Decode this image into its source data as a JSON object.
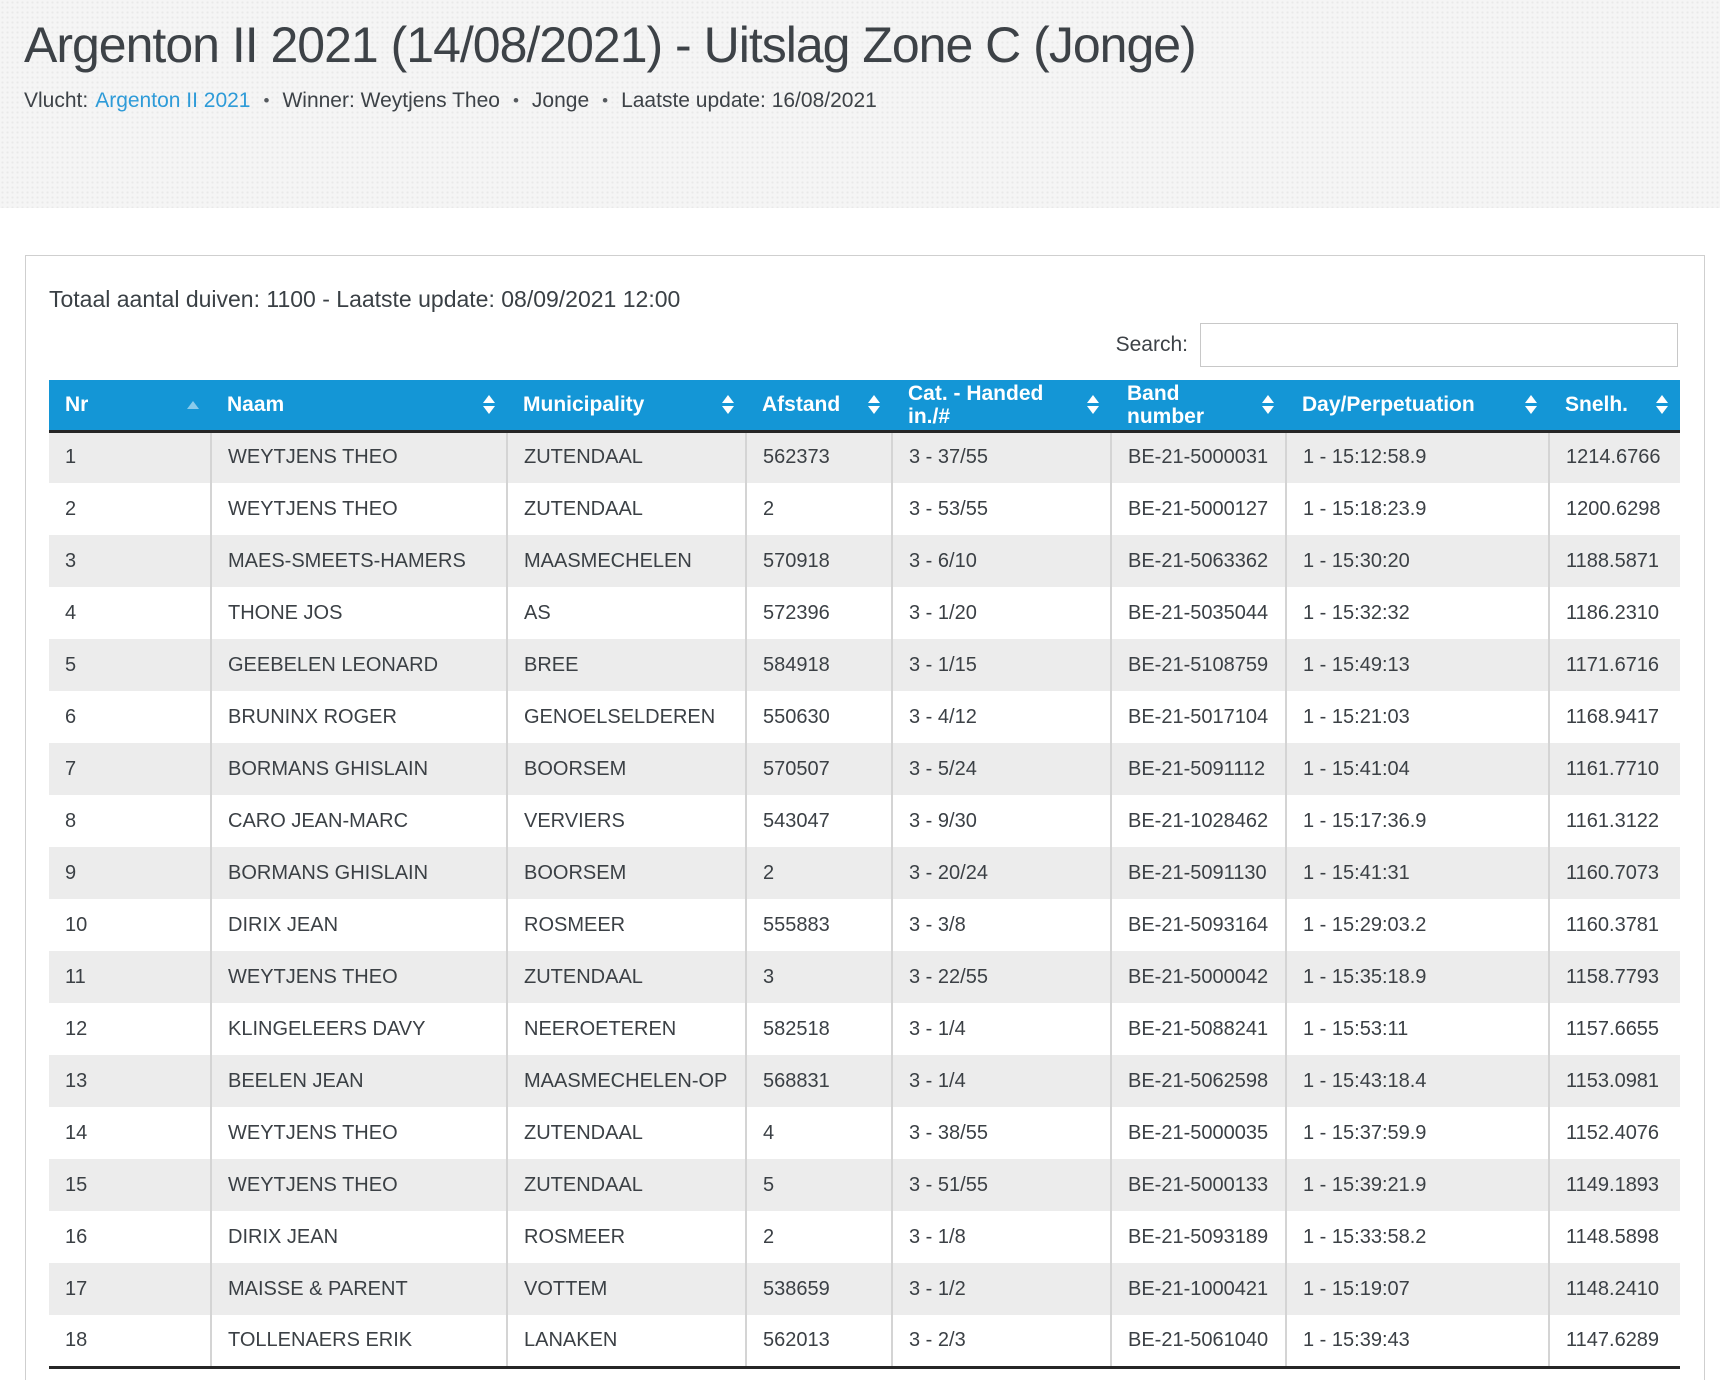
{
  "colors": {
    "header-bg": "#1496d6",
    "link": "#2e9bd8",
    "stripe": "#ececec",
    "text": "#3b4045",
    "border-dark": "#262626",
    "band-bg": "#f5f5f5"
  },
  "page": {
    "title": "Argenton II 2021 (14/08/2021) - Uitslag Zone C (Jonge)",
    "meta": {
      "vlucht_label": "Vlucht:",
      "vlucht_link": "Argenton II 2021",
      "separator": "•",
      "winner": "Winner: Weytjens Theo",
      "category": "Jonge",
      "last_update": "Laatste update: 16/08/2021"
    }
  },
  "panel": {
    "summary": "Totaal aantal duiven: 1100 - Laatste update: 08/09/2021 12:00",
    "search_label": "Search:",
    "search_value": ""
  },
  "table": {
    "columns": [
      {
        "label": "Nr",
        "sort": "asc"
      },
      {
        "label": "Naam",
        "sort": "both"
      },
      {
        "label": "Municipality",
        "sort": "both"
      },
      {
        "label": "Afstand",
        "sort": "both"
      },
      {
        "label": "Cat. - Handed\nin./#",
        "sort": "both"
      },
      {
        "label": "Band\nnumber",
        "sort": "both"
      },
      {
        "label": "Day/Perpetuation",
        "sort": "both"
      },
      {
        "label": "Snelh.",
        "sort": "both"
      }
    ],
    "rows": [
      [
        "1",
        "WEYTJENS THEO",
        "ZUTENDAAL",
        "562373",
        "3 - 37/55",
        "BE-21-5000031",
        "1 - 15:12:58.9",
        "1214.6766"
      ],
      [
        "2",
        "WEYTJENS THEO",
        "ZUTENDAAL",
        "2",
        "3 - 53/55",
        "BE-21-5000127",
        "1 - 15:18:23.9",
        "1200.6298"
      ],
      [
        "3",
        "MAES-SMEETS-HAMERS",
        "MAASMECHELEN",
        "570918",
        "3 - 6/10",
        "BE-21-5063362",
        "1 - 15:30:20",
        "1188.5871"
      ],
      [
        "4",
        "THONE JOS",
        "AS",
        "572396",
        "3 - 1/20",
        "BE-21-5035044",
        "1 - 15:32:32",
        "1186.2310"
      ],
      [
        "5",
        "GEEBELEN LEONARD",
        "BREE",
        "584918",
        "3 - 1/15",
        "BE-21-5108759",
        "1 - 15:49:13",
        "1171.6716"
      ],
      [
        "6",
        "BRUNINX ROGER",
        "GENOELSELDEREN",
        "550630",
        "3 - 4/12",
        "BE-21-5017104",
        "1 - 15:21:03",
        "1168.9417"
      ],
      [
        "7",
        "BORMANS GHISLAIN",
        "BOORSEM",
        "570507",
        "3 - 5/24",
        "BE-21-5091112",
        "1 - 15:41:04",
        "1161.7710"
      ],
      [
        "8",
        "CARO JEAN-MARC",
        "VERVIERS",
        "543047",
        "3 - 9/30",
        "BE-21-1028462",
        "1 - 15:17:36.9",
        "1161.3122"
      ],
      [
        "9",
        "BORMANS GHISLAIN",
        "BOORSEM",
        "2",
        "3 - 20/24",
        "BE-21-5091130",
        "1 - 15:41:31",
        "1160.7073"
      ],
      [
        "10",
        "DIRIX JEAN",
        "ROSMEER",
        "555883",
        "3 - 3/8",
        "BE-21-5093164",
        "1 - 15:29:03.2",
        "1160.3781"
      ],
      [
        "11",
        "WEYTJENS THEO",
        "ZUTENDAAL",
        "3",
        "3 - 22/55",
        "BE-21-5000042",
        "1 - 15:35:18.9",
        "1158.7793"
      ],
      [
        "12",
        "KLINGELEERS DAVY",
        "NEEROETEREN",
        "582518",
        "3 - 1/4",
        "BE-21-5088241",
        "1 - 15:53:11",
        "1157.6655"
      ],
      [
        "13",
        "BEELEN JEAN",
        "MAASMECHELEN-OP",
        "568831",
        "3 - 1/4",
        "BE-21-5062598",
        "1 - 15:43:18.4",
        "1153.0981"
      ],
      [
        "14",
        "WEYTJENS THEO",
        "ZUTENDAAL",
        "4",
        "3 - 38/55",
        "BE-21-5000035",
        "1 - 15:37:59.9",
        "1152.4076"
      ],
      [
        "15",
        "WEYTJENS THEO",
        "ZUTENDAAL",
        "5",
        "3 - 51/55",
        "BE-21-5000133",
        "1 - 15:39:21.9",
        "1149.1893"
      ],
      [
        "16",
        "DIRIX JEAN",
        "ROSMEER",
        "2",
        "3 - 1/8",
        "BE-21-5093189",
        "1 - 15:33:58.2",
        "1148.5898"
      ],
      [
        "17",
        "MAISSE & PARENT",
        "VOTTEM",
        "538659",
        "3 - 1/2",
        "BE-21-1000421",
        "1 - 15:19:07",
        "1148.2410"
      ],
      [
        "18",
        "TOLLENAERS ERIK",
        "LANAKEN",
        "562013",
        "3 - 2/3",
        "BE-21-5061040",
        "1 - 15:39:43",
        "1147.6289"
      ]
    ]
  }
}
